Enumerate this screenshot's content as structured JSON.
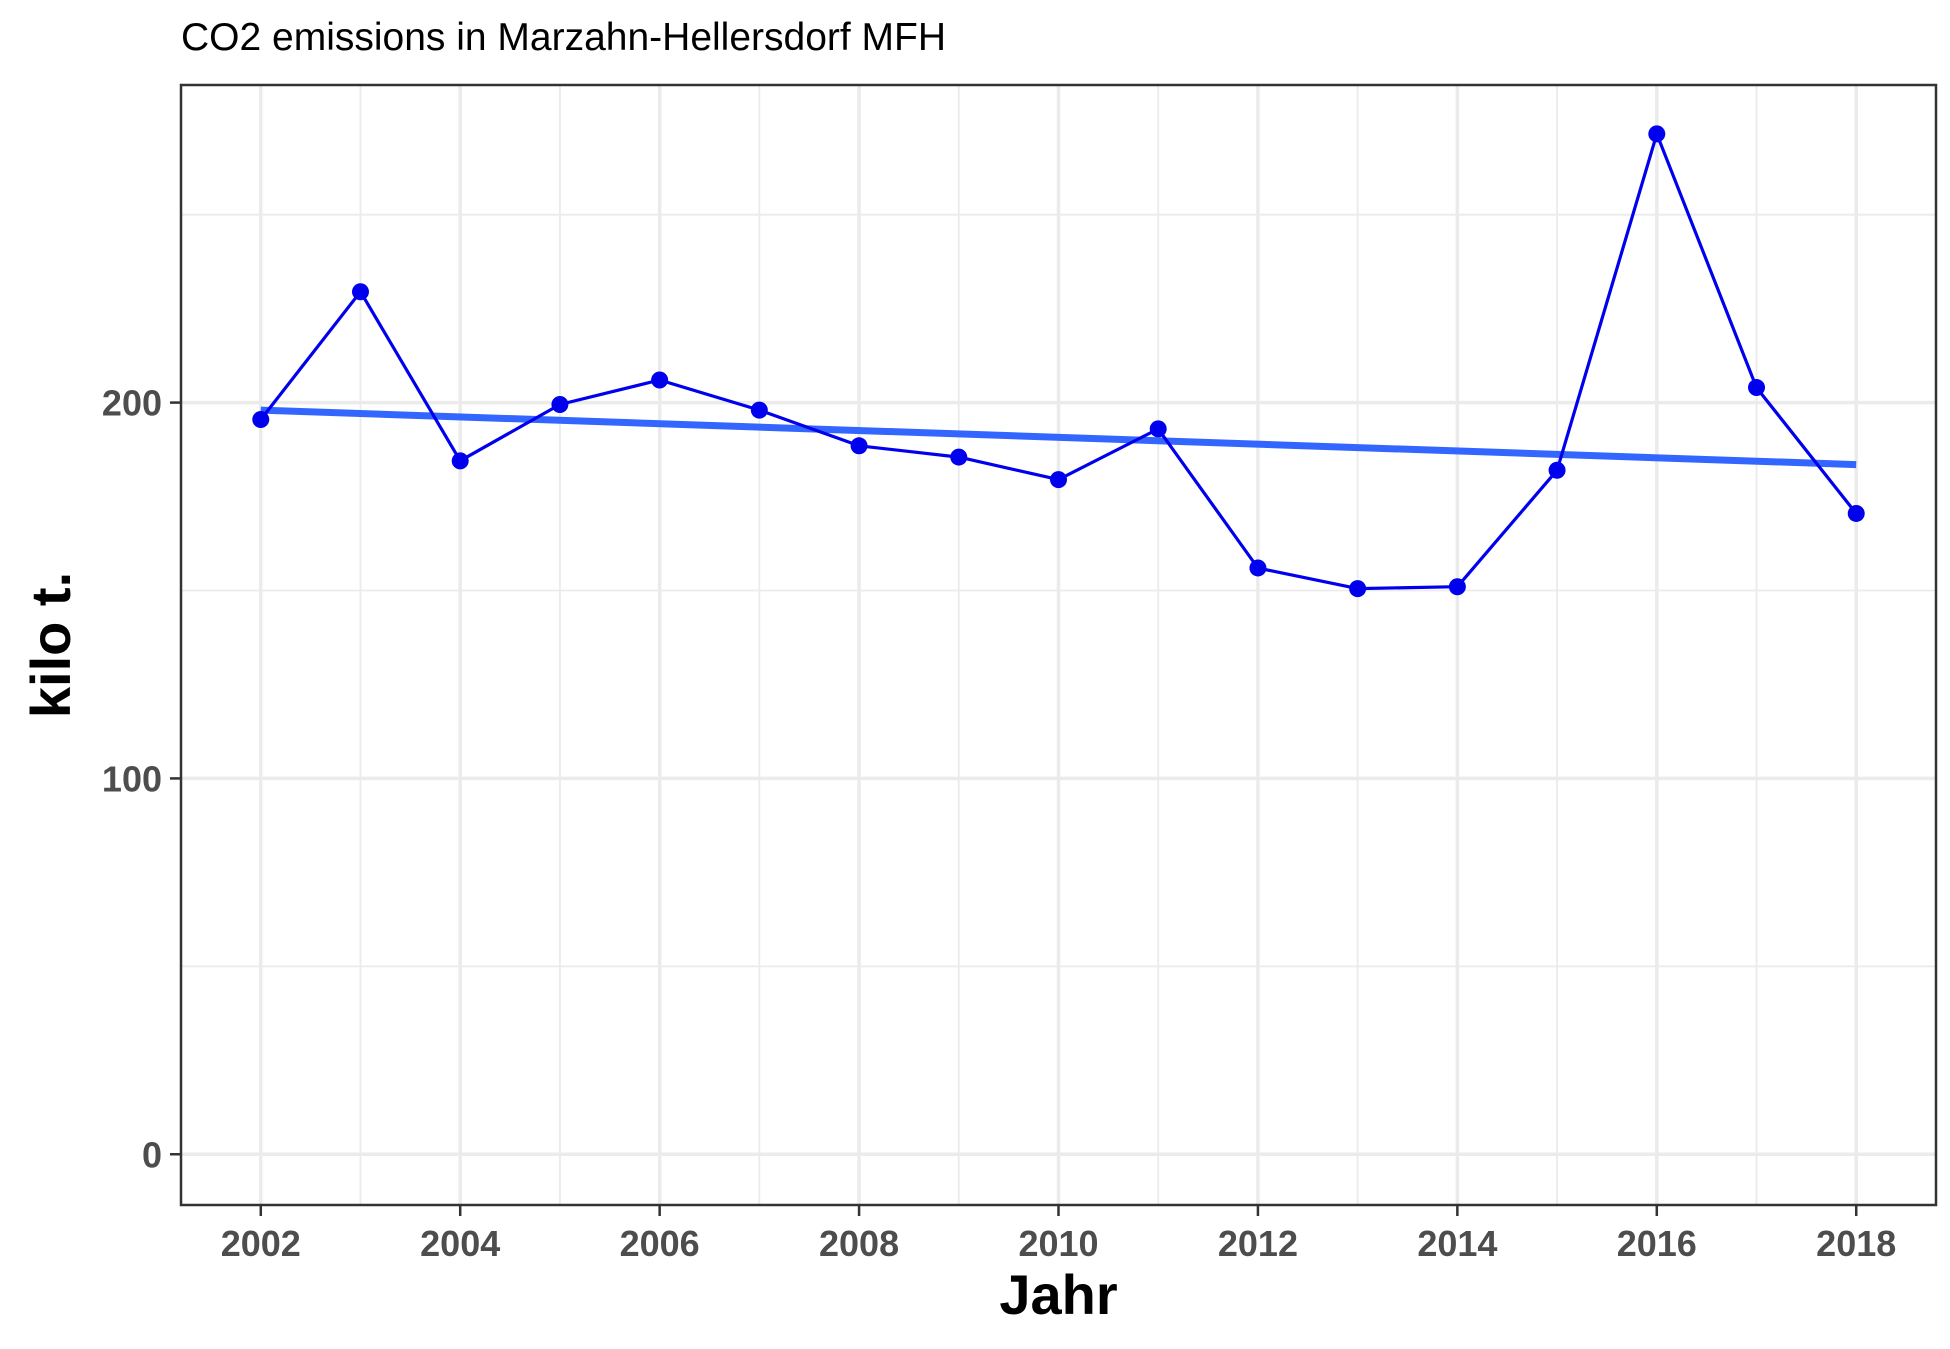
{
  "chart_data": {
    "type": "line",
    "title": "CO2 emissions in Marzahn-Hellersdorf MFH",
    "xlabel": "Jahr",
    "ylabel": "kilo t.",
    "x_ticks": [
      2002,
      2004,
      2006,
      2008,
      2010,
      2012,
      2014,
      2016,
      2018
    ],
    "y_ticks": [
      0,
      100,
      200
    ],
    "xlim": [
      2001.2,
      2018.8
    ],
    "ylim": [
      -13.5,
      284.5
    ],
    "grid": true,
    "series": [
      {
        "color": "#0000ee",
        "points": true,
        "x": [
          2002,
          2003,
          2004,
          2005,
          2006,
          2007,
          2008,
          2009,
          2010,
          2011,
          2012,
          2013,
          2014,
          2015,
          2016,
          2017,
          2018
        ],
        "values": [
          195.5,
          229.5,
          184.5,
          199.5,
          206,
          198,
          188.5,
          185.5,
          179.5,
          193,
          156,
          150.5,
          151,
          182,
          271.5,
          204,
          170.5
        ]
      }
    ],
    "trend_line": {
      "color": "#3366ff",
      "x": [
        2002,
        2018
      ],
      "values": [
        198,
        183.5
      ]
    }
  }
}
